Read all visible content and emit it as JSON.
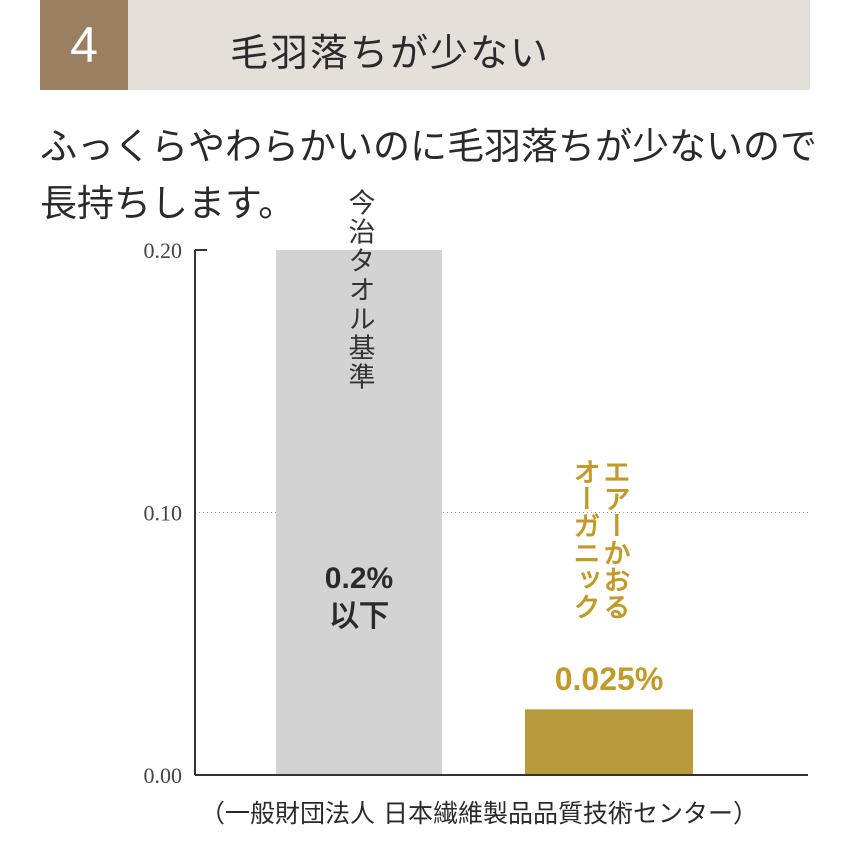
{
  "header": {
    "number": "4",
    "title": "毛羽落ちが少ない"
  },
  "lead_text": "ふっくらやわらかいのに毛羽落ちが少ないので長持ちします。",
  "colors": {
    "badge": "#9a8060",
    "banner": "#e3e0da",
    "bar_standard": "#d3d3d3",
    "bar_product": "#b89a3a",
    "product_text": "#c29a2a"
  },
  "chart_data": {
    "type": "bar",
    "categories": [
      "今治タオル基準",
      "エアーかおるオーガニック"
    ],
    "values": [
      0.2,
      0.025
    ],
    "value_labels": [
      [
        "0.2%",
        "以下"
      ],
      [
        "0.025%"
      ]
    ],
    "yticks": [
      "0.00",
      "0.10",
      "0.20"
    ],
    "ylim": [
      0,
      0.2
    ],
    "grid": "dotted line at 0.10",
    "legend": "none",
    "source": "（一般財団法人 日本繊維製品品質技術センター）"
  }
}
